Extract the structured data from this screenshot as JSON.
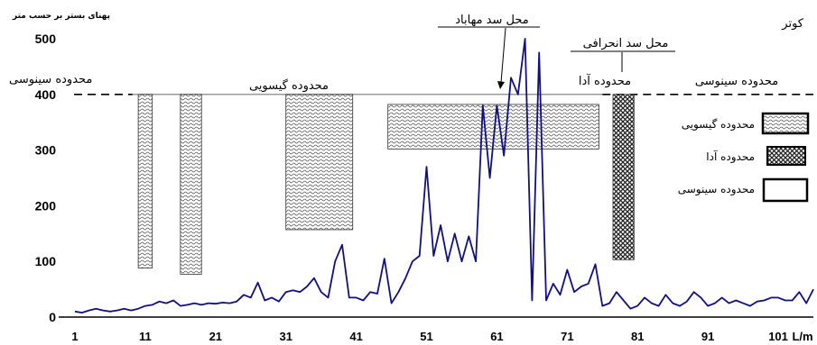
{
  "chart_data": {
    "type": "line",
    "ylabel": "پهنای بستر بر حسب متر",
    "xlabel": "L/m",
    "location_label": "کوتر",
    "ylim": [
      0,
      500
    ],
    "y_ticks": [
      "0",
      "100",
      "200",
      "300",
      "400",
      "500"
    ],
    "x_ticks": [
      "1",
      "11",
      "21",
      "31",
      "41",
      "51",
      "61",
      "71",
      "81",
      "91",
      "101",
      "L/m"
    ],
    "x_tick_values": [
      1,
      11,
      21,
      31,
      41,
      51,
      61,
      71,
      81,
      91,
      101
    ],
    "xlim": [
      1,
      106
    ],
    "grid": false,
    "threshold": 400,
    "series": [
      {
        "x": [
          1,
          2,
          3,
          4,
          5,
          6,
          7,
          8,
          9,
          10,
          11,
          12,
          13,
          14,
          15,
          16,
          17,
          18,
          19,
          20,
          21,
          22,
          23,
          24,
          25,
          26,
          27,
          28,
          29,
          30,
          31,
          32,
          33,
          34,
          35,
          36,
          37,
          38,
          39,
          40,
          41,
          42,
          43,
          44,
          45,
          46,
          47,
          48,
          49,
          50,
          51,
          52,
          53,
          54,
          55,
          56,
          57,
          58,
          59,
          60,
          61,
          62,
          63,
          64,
          65,
          66,
          67,
          68,
          69,
          70,
          71,
          72,
          73,
          74,
          75,
          76,
          77,
          78,
          79,
          80,
          81,
          82,
          83,
          84,
          85,
          86,
          87,
          88,
          89,
          90,
          91,
          92,
          93,
          94,
          95,
          96,
          97,
          98,
          99,
          100,
          101,
          102,
          103,
          104,
          105,
          106
        ],
        "values": [
          10,
          8,
          12,
          15,
          12,
          10,
          12,
          15,
          12,
          15,
          20,
          22,
          28,
          25,
          30,
          20,
          22,
          25,
          22,
          25,
          24,
          26,
          25,
          28,
          40,
          35,
          62,
          30,
          35,
          28,
          45,
          48,
          45,
          55,
          70,
          45,
          35,
          100,
          130,
          35,
          35,
          30,
          45,
          42,
          105,
          25,
          45,
          70,
          100,
          110,
          270,
          110,
          165,
          100,
          150,
          100,
          145,
          100,
          380,
          250,
          380,
          290,
          430,
          400,
          500,
          30,
          475,
          30,
          60,
          40,
          85,
          45,
          55,
          60,
          95,
          20,
          25,
          45,
          30,
          15,
          20,
          35,
          25,
          20,
          40,
          25,
          20,
          28,
          45,
          35,
          20,
          25,
          35,
          25,
          30,
          25,
          20,
          28,
          30,
          35,
          35,
          30,
          30,
          45,
          25,
          50
        ]
      }
    ],
    "annotations": {
      "mahabad_dam": "محل سد مهاباد",
      "diversion_dam": "محل سد انحرافی",
      "sinusi_left": "محدوده سینوسی",
      "gisui": "محدوده گیسویی",
      "ada_top": "محدوده آدا",
      "sinusi_right": "محدوده سینوسی"
    },
    "legend": {
      "placement": "right",
      "items": [
        {
          "label": "محدوده گیسویی",
          "pattern": "wavy"
        },
        {
          "label": "محدوده آدا",
          "pattern": "braided"
        },
        {
          "label": "محدوده سینوسی",
          "pattern": "empty"
        }
      ]
    },
    "hatched_ranges": [
      {
        "x_start": 10,
        "x_end": 12,
        "y_bottom": 88,
        "y_top": 400,
        "pattern": "wavy"
      },
      {
        "x_start": 16,
        "x_end": 19,
        "y_bottom": 77,
        "y_top": 400,
        "pattern": "wavy"
      },
      {
        "x_start": 31,
        "x_end": 40.5,
        "y_bottom": 157,
        "y_top": 400,
        "pattern": "wavy"
      },
      {
        "x_start": 45.5,
        "x_end": 75.5,
        "y_bottom": 302,
        "y_top": 382,
        "pattern": "wavy"
      },
      {
        "x_start": 77.5,
        "x_end": 80.5,
        "y_bottom": 103,
        "y_top": 400,
        "pattern": "braided"
      }
    ],
    "colors": {
      "line": "#101080",
      "text": "#000000"
    }
  }
}
